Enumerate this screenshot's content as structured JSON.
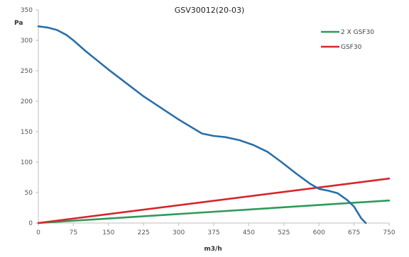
{
  "chart_data": {
    "type": "line",
    "title": "GSV30012(20-03)",
    "xlabel": "m3/h",
    "ylabel": "Pa",
    "xlim": [
      0,
      750
    ],
    "ylim": [
      0,
      350
    ],
    "x_ticks": [
      "0",
      "75",
      "150",
      "225",
      "300",
      "375",
      "450",
      "525",
      "600",
      "675",
      "750"
    ],
    "y_ticks": [
      "0",
      "50",
      "100",
      "150",
      "200",
      "250",
      "300",
      "350"
    ],
    "grid": false,
    "legend_position": "top-right",
    "series": [
      {
        "name": "2 X GSF30",
        "color": "#2e9a5a",
        "x": [
          0,
          750
        ],
        "y": [
          0,
          37
        ]
      },
      {
        "name": "GSF30",
        "color": "#d6262b",
        "x": [
          0,
          750
        ],
        "y": [
          0,
          73
        ]
      },
      {
        "name": "",
        "color": "#2a6fa8",
        "x": [
          0,
          20,
          40,
          60,
          75,
          100,
          150,
          225,
          300,
          350,
          375,
          400,
          430,
          460,
          490,
          520,
          550,
          580,
          600,
          620,
          640,
          660,
          675,
          690,
          700
        ],
        "y": [
          323,
          321,
          317,
          309,
          300,
          283,
          252,
          208,
          170,
          147,
          143,
          141,
          136,
          128,
          117,
          100,
          82,
          65,
          56,
          53,
          49,
          38,
          27,
          8,
          0
        ]
      }
    ]
  }
}
